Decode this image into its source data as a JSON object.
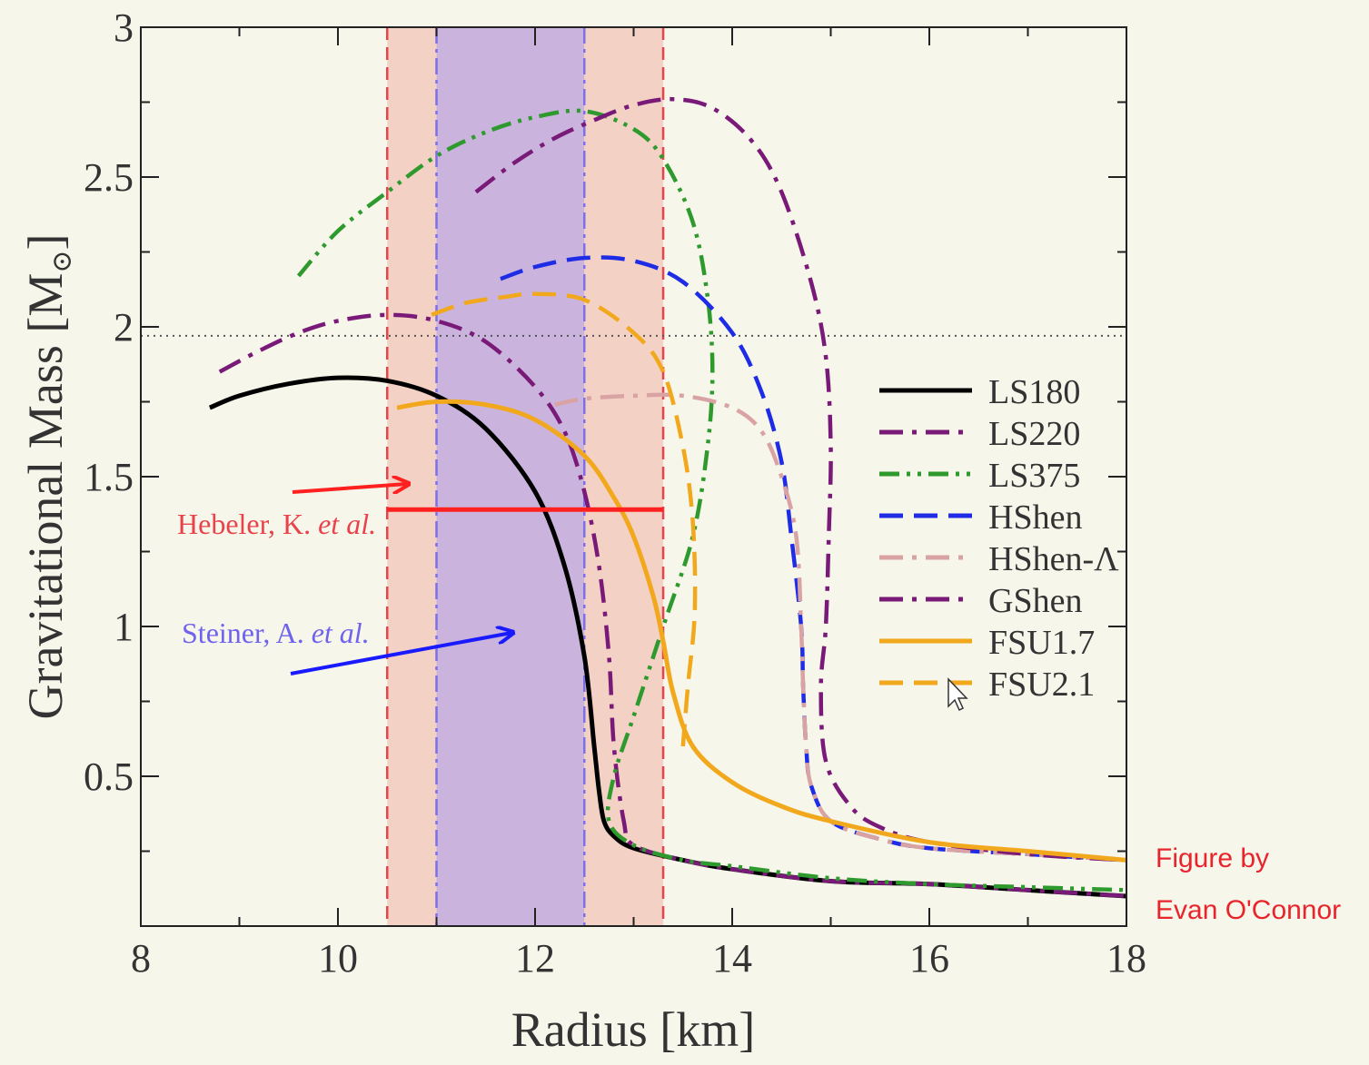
{
  "chart_data": {
    "type": "line",
    "xlabel": "Radius [km]",
    "ylabel": "Gravitational Mass [M",
    "ylabel_symbol": "⊙",
    "ylabel_close": "]",
    "xlim": [
      8,
      18
    ],
    "ylim": [
      0,
      3
    ],
    "xticks": [
      8,
      10,
      12,
      14,
      16,
      18
    ],
    "xtick_labels": [
      "8",
      "10",
      "12",
      "14",
      "16",
      "18"
    ],
    "yticks": [
      0.5,
      1,
      1.5,
      2,
      2.5,
      3
    ],
    "ytick_labels": [
      "0.5",
      "1",
      "1.5",
      "2",
      "2.5",
      "3"
    ],
    "grid": false,
    "legend_position": "right",
    "reference_line": {
      "y": 1.97,
      "style": "dotted",
      "color": "#555555"
    },
    "bands": [
      {
        "name": "Hebeler, K. et al.",
        "x_range": [
          10.5,
          13.3
        ],
        "color": "#f3b3a6",
        "edge_color": "#e8434a"
      },
      {
        "name": "Steiner, A. et al.",
        "x_range": [
          11.0,
          12.5
        ],
        "color": "#a79cf0",
        "edge_color": "#7b70e8"
      }
    ],
    "annotations": [
      {
        "text": "Hebeler, K. ",
        "text_italic": "et al.",
        "color": "#e8434a",
        "marker": {
          "x_range": [
            10.5,
            13.3
          ],
          "y": 1.39,
          "color": "#ff2020"
        }
      },
      {
        "text": "Steiner, A. ",
        "text_italic": "et al.",
        "color": "#6e63ef",
        "arrow_color": "#1a1aff"
      }
    ],
    "series": [
      {
        "name": "LS180",
        "color": "#000000",
        "style": "solid",
        "x": [
          8.7,
          9.0,
          9.5,
          10.0,
          10.5,
          11.0,
          11.5,
          12.0,
          12.3,
          12.5,
          12.6,
          12.65,
          12.7,
          12.8,
          13.0,
          13.5,
          14.0,
          15.0,
          16.0,
          17.0,
          18.0
        ],
        "y": [
          1.73,
          1.77,
          1.81,
          1.83,
          1.82,
          1.77,
          1.66,
          1.45,
          1.2,
          0.9,
          0.6,
          0.45,
          0.35,
          0.3,
          0.26,
          0.22,
          0.19,
          0.15,
          0.14,
          0.12,
          0.1
        ]
      },
      {
        "name": "LS220",
        "color": "#7a1a78",
        "style": "dashdot",
        "x": [
          8.8,
          9.2,
          9.6,
          10.0,
          10.5,
          11.0,
          11.5,
          12.0,
          12.3,
          12.5,
          12.65,
          12.75,
          12.8,
          12.9,
          13.0,
          13.5,
          14.0,
          15.0,
          16.0,
          17.0,
          18.0
        ],
        "y": [
          1.85,
          1.92,
          1.98,
          2.02,
          2.04,
          2.02,
          1.95,
          1.8,
          1.65,
          1.45,
          1.2,
          0.9,
          0.6,
          0.35,
          0.27,
          0.22,
          0.19,
          0.15,
          0.14,
          0.12,
          0.1
        ]
      },
      {
        "name": "LS375",
        "color": "#2e9a2e",
        "style": "dashdotdot",
        "x": [
          9.6,
          10.0,
          10.5,
          11.0,
          11.5,
          12.0,
          12.5,
          13.0,
          13.3,
          13.6,
          13.75,
          13.8,
          13.75,
          13.6,
          13.3,
          13.0,
          12.8,
          12.75,
          13.0,
          13.5,
          14.0,
          15.0,
          16.0,
          17.0,
          18.0
        ],
        "y": [
          2.17,
          2.32,
          2.45,
          2.57,
          2.65,
          2.7,
          2.72,
          2.66,
          2.56,
          2.35,
          2.1,
          1.85,
          1.6,
          1.3,
          1.0,
          0.7,
          0.5,
          0.35,
          0.27,
          0.22,
          0.2,
          0.16,
          0.14,
          0.13,
          0.12
        ]
      },
      {
        "name": "HShen",
        "color": "#1f2ce6",
        "style": "dashed",
        "x": [
          11.65,
          12.0,
          12.5,
          13.0,
          13.5,
          14.0,
          14.3,
          14.5,
          14.6,
          14.7,
          14.72,
          14.75,
          14.8,
          15.0,
          15.5,
          16.0,
          17.0,
          18.0
        ],
        "y": [
          2.16,
          2.2,
          2.23,
          2.22,
          2.15,
          1.98,
          1.78,
          1.55,
          1.3,
          1.0,
          0.8,
          0.6,
          0.47,
          0.35,
          0.29,
          0.26,
          0.24,
          0.22
        ]
      },
      {
        "name": "HShen-Λ",
        "color": "#d9a3a3",
        "style": "dashdot",
        "x": [
          12.2,
          12.5,
          13.0,
          13.5,
          14.0,
          14.3,
          14.5,
          14.65,
          14.7,
          14.72,
          14.75,
          14.8,
          15.0,
          15.5,
          16.0,
          17.0,
          18.0
        ],
        "y": [
          1.74,
          1.76,
          1.77,
          1.77,
          1.73,
          1.65,
          1.5,
          1.3,
          1.0,
          0.8,
          0.6,
          0.47,
          0.35,
          0.29,
          0.26,
          0.24,
          0.22
        ]
      },
      {
        "name": "GShen",
        "color": "#7a1a78",
        "style": "dashdot",
        "x": [
          11.4,
          11.8,
          12.2,
          12.6,
          13.0,
          13.4,
          13.8,
          14.2,
          14.5,
          14.8,
          14.95,
          15.0,
          14.98,
          14.95,
          14.9,
          14.95,
          15.2,
          15.5,
          16.0,
          17.0,
          18.0
        ],
        "y": [
          2.45,
          2.55,
          2.63,
          2.69,
          2.74,
          2.76,
          2.73,
          2.62,
          2.45,
          2.15,
          1.9,
          1.6,
          1.3,
          1.0,
          0.8,
          0.55,
          0.4,
          0.33,
          0.28,
          0.24,
          0.22
        ]
      },
      {
        "name": "FSU1.7",
        "color": "#f2a81c",
        "style": "solid",
        "x": [
          10.6,
          11.0,
          11.5,
          12.0,
          12.5,
          12.8,
          13.0,
          13.2,
          13.3,
          13.4,
          13.6,
          14.0,
          14.5,
          15.0,
          16.0,
          17.0,
          18.0
        ],
        "y": [
          1.73,
          1.75,
          1.74,
          1.69,
          1.57,
          1.43,
          1.3,
          1.1,
          0.95,
          0.78,
          0.6,
          0.48,
          0.4,
          0.35,
          0.28,
          0.25,
          0.22
        ]
      },
      {
        "name": "FSU2.1",
        "color": "#f2a81c",
        "style": "dashed",
        "x": [
          10.95,
          11.3,
          11.7,
          12.0,
          12.5,
          13.0,
          13.3,
          13.5,
          13.6,
          13.62,
          13.55,
          13.5
        ],
        "y": [
          2.04,
          2.08,
          2.1,
          2.11,
          2.09,
          1.98,
          1.85,
          1.6,
          1.35,
          1.05,
          0.8,
          0.6
        ]
      }
    ]
  },
  "credit": {
    "line1": "Figure by",
    "line2": "Evan O'Connor",
    "color": "#e8242c"
  },
  "icons": {
    "cursor": "mouse-pointer-icon"
  }
}
